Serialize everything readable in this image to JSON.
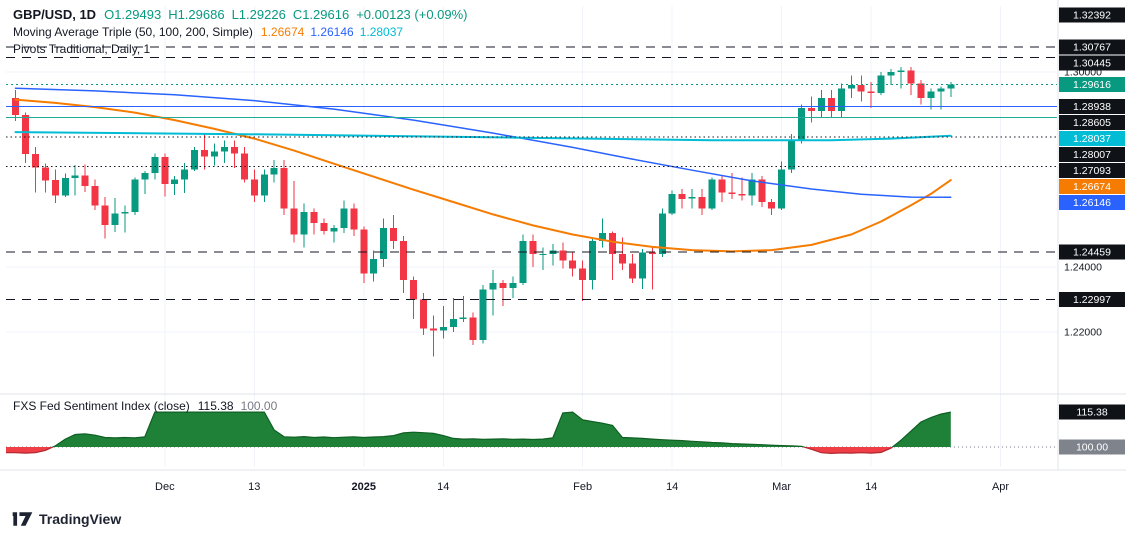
{
  "legend": {
    "symbol_text": "GBP/USD, 1D",
    "open": "O1.29493",
    "high": "H1.29686",
    "low": "L1.29226",
    "close": "C1.29616",
    "change": "+0.00123 (+0.09%)",
    "ma_title": "Moving Average Triple (50, 100, 200, Simple)",
    "ma_values": [
      "1.26674",
      "1.26146",
      "1.28037"
    ],
    "pivots_title": "Pivots Traditional, Daily, 1"
  },
  "sentiment_legend": {
    "title": "FXS Fed Sentiment Index (close)",
    "value": "115.38",
    "baseline": "100.00"
  },
  "footer": {
    "logo_text": "TradingView"
  },
  "colors": {
    "up": "#089981",
    "down": "#f23645",
    "ma50": "#f57c00",
    "ma100": "#2962ff",
    "ma200": "#00bcd4",
    "level_blue": "#2962ff",
    "level_teal": "#22ab94",
    "pivot": "#131722",
    "badge_dark": "#0f1318",
    "badge_gray": "#7e838c",
    "senti_up_fill": "#1f8038",
    "senti_up_stroke": "#0e6023",
    "senti_down_fill": "#ef3e46",
    "senti_down_stroke": "#b02730",
    "axis_text": "#131722",
    "grid": "#f1f3f8",
    "separator": "#e0e3eb"
  },
  "chart_data": [
    {
      "type": "candlestick",
      "title": "GBP/USD, 1D",
      "ohlc_legend": {
        "open": 1.29493,
        "high": 1.29686,
        "low": 1.29226,
        "close": 1.29616,
        "change": "+0.00123 (+0.09%)"
      },
      "y_axis": {
        "range": [
          1.215,
          1.323
        ],
        "ticks": [
          {
            "text": "1.30000",
            "value": 1.3
          },
          {
            "text": "1.24000",
            "value": 1.24
          },
          {
            "text": "1.22000",
            "value": 1.22
          }
        ]
      },
      "x_labels": [
        {
          "label": "Dec",
          "index": 15
        },
        {
          "label": "13",
          "index": 24
        },
        {
          "label": "2025",
          "index": 35,
          "bold": true
        },
        {
          "label": "14",
          "index": 43
        },
        {
          "label": "Feb",
          "index": 57
        },
        {
          "label": "14",
          "index": 66
        },
        {
          "label": "Mar",
          "index": 77
        },
        {
          "label": "14",
          "index": 86
        },
        {
          "label": "Apr",
          "index": 99
        }
      ],
      "candles": [
        [
          1.292,
          1.2945,
          1.285,
          1.2867
        ],
        [
          1.2867,
          1.2875,
          1.272,
          1.2747
        ],
        [
          1.2747,
          1.2769,
          1.263,
          1.2706
        ],
        [
          1.2706,
          1.2719,
          1.263,
          1.2667
        ],
        [
          1.2667,
          1.27,
          1.2597,
          1.262
        ],
        [
          1.262,
          1.2687,
          1.2616,
          1.2674
        ],
        [
          1.2674,
          1.2714,
          1.262,
          1.2682
        ],
        [
          1.2682,
          1.2715,
          1.2631,
          1.265
        ],
        [
          1.265,
          1.267,
          1.2575,
          1.259
        ],
        [
          1.259,
          1.2615,
          1.2487,
          1.253
        ],
        [
          1.253,
          1.2613,
          1.2507,
          1.2565
        ],
        [
          1.2565,
          1.259,
          1.2506,
          1.257
        ],
        [
          1.257,
          1.2675,
          1.256,
          1.267
        ],
        [
          1.267,
          1.2695,
          1.2625,
          1.269
        ],
        [
          1.269,
          1.275,
          1.267,
          1.2738
        ],
        [
          1.2738,
          1.275,
          1.2617,
          1.2655
        ],
        [
          1.2655,
          1.268,
          1.2622,
          1.267
        ],
        [
          1.267,
          1.272,
          1.2628,
          1.27
        ],
        [
          1.27,
          1.277,
          1.2695,
          1.276
        ],
        [
          1.276,
          1.281,
          1.27,
          1.274
        ],
        [
          1.274,
          1.278,
          1.2713,
          1.2755
        ],
        [
          1.2755,
          1.279,
          1.272,
          1.277
        ],
        [
          1.277,
          1.279,
          1.2705,
          1.275
        ],
        [
          1.275,
          1.277,
          1.266,
          1.267
        ],
        [
          1.267,
          1.27,
          1.26,
          1.262
        ],
        [
          1.262,
          1.27,
          1.26,
          1.2685
        ],
        [
          1.2685,
          1.273,
          1.266,
          1.2705
        ],
        [
          1.2705,
          1.273,
          1.256,
          1.258
        ],
        [
          1.258,
          1.2665,
          1.2475,
          1.25
        ],
        [
          1.25,
          1.2595,
          1.246,
          1.257
        ],
        [
          1.257,
          1.258,
          1.25,
          1.2535
        ],
        [
          1.2535,
          1.255,
          1.25,
          1.251
        ],
        [
          1.251,
          1.253,
          1.2475,
          1.252
        ],
        [
          1.252,
          1.2605,
          1.2505,
          1.258
        ],
        [
          1.258,
          1.2595,
          1.2495,
          1.2515
        ],
        [
          1.2515,
          1.2525,
          1.235,
          1.238
        ],
        [
          1.238,
          1.245,
          1.2355,
          1.2425
        ],
        [
          1.2425,
          1.255,
          1.24,
          1.252
        ],
        [
          1.252,
          1.256,
          1.2455,
          1.248
        ],
        [
          1.248,
          1.2495,
          1.232,
          1.236
        ],
        [
          1.236,
          1.237,
          1.224,
          1.23
        ],
        [
          1.23,
          1.232,
          1.219,
          1.221
        ],
        [
          1.221,
          1.225,
          1.2125,
          1.2205
        ],
        [
          1.2205,
          1.228,
          1.218,
          1.2215
        ],
        [
          1.2215,
          1.2305,
          1.22,
          1.224
        ],
        [
          1.224,
          1.231,
          1.223,
          1.2245
        ],
        [
          1.2245,
          1.226,
          1.216,
          1.2175
        ],
        [
          1.2175,
          1.2345,
          1.2165,
          1.233
        ],
        [
          1.233,
          1.239,
          1.225,
          1.235
        ],
        [
          1.235,
          1.236,
          1.228,
          1.2335
        ],
        [
          1.2335,
          1.237,
          1.2305,
          1.235
        ],
        [
          1.235,
          1.25,
          1.2345,
          1.248
        ],
        [
          1.248,
          1.25,
          1.24,
          1.244
        ],
        [
          1.244,
          1.246,
          1.239,
          1.244
        ],
        [
          1.244,
          1.247,
          1.2405,
          1.245
        ],
        [
          1.245,
          1.2475,
          1.2395,
          1.242
        ],
        [
          1.242,
          1.2445,
          1.237,
          1.2395
        ],
        [
          1.2395,
          1.242,
          1.2295,
          1.236
        ],
        [
          1.236,
          1.249,
          1.233,
          1.248
        ],
        [
          1.248,
          1.255,
          1.246,
          1.2505
        ],
        [
          1.2505,
          1.251,
          1.236,
          1.244
        ],
        [
          1.244,
          1.249,
          1.239,
          1.241
        ],
        [
          1.241,
          1.244,
          1.235,
          1.2365
        ],
        [
          1.2365,
          1.2455,
          1.2333,
          1.2445
        ],
        [
          1.2445,
          1.246,
          1.233,
          1.244
        ],
        [
          1.244,
          1.258,
          1.243,
          1.2565
        ],
        [
          1.2565,
          1.2635,
          1.256,
          1.2625
        ],
        [
          1.2625,
          1.264,
          1.258,
          1.261
        ],
        [
          1.261,
          1.264,
          1.258,
          1.2615
        ],
        [
          1.2615,
          1.264,
          1.256,
          1.258
        ],
        [
          1.258,
          1.2675,
          1.2575,
          1.267
        ],
        [
          1.267,
          1.268,
          1.26,
          1.263
        ],
        [
          1.263,
          1.269,
          1.261,
          1.2625
        ],
        [
          1.2625,
          1.2675,
          1.2605,
          1.262
        ],
        [
          1.262,
          1.269,
          1.259,
          1.267
        ],
        [
          1.267,
          1.268,
          1.2585,
          1.26
        ],
        [
          1.26,
          1.261,
          1.256,
          1.258
        ],
        [
          1.258,
          1.2725,
          1.2575,
          1.27
        ],
        [
          1.27,
          1.281,
          1.269,
          1.279
        ],
        [
          1.279,
          1.29,
          1.278,
          1.289
        ],
        [
          1.289,
          1.2925,
          1.2845,
          1.288
        ],
        [
          1.288,
          1.2945,
          1.286,
          1.292
        ],
        [
          1.292,
          1.2945,
          1.286,
          1.288
        ],
        [
          1.288,
          1.2965,
          1.286,
          1.295
        ],
        [
          1.295,
          1.299,
          1.292,
          1.296
        ],
        [
          1.296,
          1.299,
          1.291,
          1.294
        ],
        [
          1.294,
          1.297,
          1.289,
          1.2935
        ],
        [
          1.2935,
          1.3,
          1.293,
          1.299
        ],
        [
          1.299,
          1.301,
          1.296,
          1.3
        ],
        [
          1.3,
          1.3015,
          1.295,
          1.3005
        ],
        [
          1.3005,
          1.3015,
          1.293,
          1.2965
        ],
        [
          1.2965,
          1.2975,
          1.29,
          1.292
        ],
        [
          1.292,
          1.295,
          1.2885,
          1.294
        ],
        [
          1.294,
          1.2955,
          1.2885,
          1.2949
        ],
        [
          1.29493,
          1.29686,
          1.29226,
          1.29616
        ]
      ],
      "overlays": [
        {
          "name": "sma-50",
          "period": 50,
          "value": 1.26674,
          "color_key": "ma50",
          "width": 2,
          "points": [
            [
              0,
              1.2915
            ],
            [
              4,
              1.2905
            ],
            [
              8,
              1.2892
            ],
            [
              12,
              1.2875
            ],
            [
              16,
              1.2852
            ],
            [
              20,
              1.2825
            ],
            [
              24,
              1.2795
            ],
            [
              28,
              1.2758
            ],
            [
              32,
              1.2718
            ],
            [
              36,
              1.2678
            ],
            [
              40,
              1.2638
            ],
            [
              44,
              1.26
            ],
            [
              48,
              1.2562
            ],
            [
              52,
              1.2528
            ],
            [
              56,
              1.25
            ],
            [
              60,
              1.2478
            ],
            [
              64,
              1.2462
            ],
            [
              68,
              1.2452
            ],
            [
              72,
              1.2448
            ],
            [
              76,
              1.2452
            ],
            [
              80,
              1.2468
            ],
            [
              84,
              1.25
            ],
            [
              87,
              1.254
            ],
            [
              90,
              1.259
            ],
            [
              92,
              1.2625
            ],
            [
              94,
              1.26674
            ]
          ]
        },
        {
          "name": "sma-100",
          "period": 100,
          "value": 1.26146,
          "color_key": "ma100",
          "width": 1.5,
          "points": [
            [
              0,
              1.295
            ],
            [
              8,
              1.2942
            ],
            [
              16,
              1.293
            ],
            [
              24,
              1.2912
            ],
            [
              32,
              1.2886
            ],
            [
              40,
              1.2852
            ],
            [
              48,
              1.2812
            ],
            [
              56,
              1.2768
            ],
            [
              62,
              1.2732
            ],
            [
              68,
              1.2698
            ],
            [
              74,
              1.2665
            ],
            [
              80,
              1.264
            ],
            [
              85,
              1.2624
            ],
            [
              90,
              1.2615
            ],
            [
              94,
              1.26146
            ]
          ]
        },
        {
          "name": "sma-200",
          "period": 200,
          "value": 1.28037,
          "color_key": "ma200",
          "width": 2,
          "points": [
            [
              0,
              1.2815
            ],
            [
              25,
              1.2808
            ],
            [
              50,
              1.2798
            ],
            [
              70,
              1.279
            ],
            [
              82,
              1.279
            ],
            [
              88,
              1.2795
            ],
            [
              94,
              1.28037
            ]
          ]
        }
      ],
      "levels": [
        {
          "value": 1.32392,
          "label": "1.32392",
          "style": "none",
          "badge": "dark"
        },
        {
          "value": 1.30767,
          "label": "1.30767",
          "style": "dashed",
          "badge": "dark"
        },
        {
          "value": 1.30445,
          "label": "1.30445",
          "style": "dashed",
          "badge": "dark"
        },
        {
          "value": 1.29616,
          "label": "1.29616",
          "style": "dotted",
          "badge": "up",
          "color_key": "up"
        },
        {
          "value": 1.28938,
          "label": "1.28938",
          "style": "solid",
          "badge": "dark",
          "color_key": "level_blue"
        },
        {
          "value": 1.28605,
          "label": "1.28605",
          "style": "solid",
          "badge": "dark",
          "color_key": "level_teal"
        },
        {
          "value": 1.28037,
          "label": "1.28037",
          "style": "none",
          "badge": "ma200"
        },
        {
          "value": 1.28007,
          "label": "1.28007",
          "style": "dotted_fine",
          "badge": "dark"
        },
        {
          "value": 1.27093,
          "label": "1.27093",
          "style": "dotted_fine",
          "badge": "dark"
        },
        {
          "value": 1.26674,
          "label": "1.26674",
          "style": "none",
          "badge": "ma50"
        },
        {
          "value": 1.26146,
          "label": "1.26146",
          "style": "none",
          "badge": "ma100"
        },
        {
          "value": 1.24459,
          "label": "1.24459",
          "style": "dashed",
          "badge": "dark"
        },
        {
          "value": 1.22997,
          "label": "1.22997",
          "style": "dashed",
          "badge": "dark"
        }
      ]
    },
    {
      "type": "area",
      "title": "FXS Fed Sentiment Index (close)",
      "current_value": 115.38,
      "baseline": 100.0,
      "values": [
        97.5,
        97.3,
        97.5,
        98.5,
        100.5,
        103.5,
        105.5,
        105.8,
        105.2,
        104.2,
        104.0,
        104.2,
        104.0,
        104.5,
        115.38,
        115.38,
        115.38,
        115.38,
        115.38,
        115.38,
        115.38,
        115.38,
        115.38,
        115.38,
        115.38,
        115.38,
        107.5,
        104.5,
        104.3,
        104.6,
        104.2,
        104.4,
        104.1,
        104.3,
        104.5,
        104.2,
        104.4,
        104.6,
        105.0,
        106.2,
        106.5,
        106.3,
        106.0,
        105.0,
        103.8,
        103.5,
        103.6,
        103.4,
        103.5,
        103.6,
        103.4,
        103.5,
        103.3,
        103.5,
        104.0,
        115.0,
        115.38,
        112.0,
        111.2,
        110.5,
        109.5,
        104.2,
        104.0,
        103.8,
        103.5,
        103.2,
        103.0,
        102.8,
        102.5,
        102.3,
        102.0,
        101.8,
        101.5,
        101.3,
        101.2,
        101.0,
        100.8,
        100.6,
        100.5,
        100.3,
        99.0,
        97.5,
        97.2,
        97.4,
        97.3,
        97.5,
        97.3,
        97.6,
        99.5,
        103.0,
        107.0,
        111.0,
        113.0,
        114.5,
        115.38
      ],
      "badges": [
        {
          "label": "115.38",
          "value": 115.38,
          "type": "dark"
        },
        {
          "label": "100.00",
          "value": 100.0,
          "type": "gray"
        }
      ]
    }
  ]
}
